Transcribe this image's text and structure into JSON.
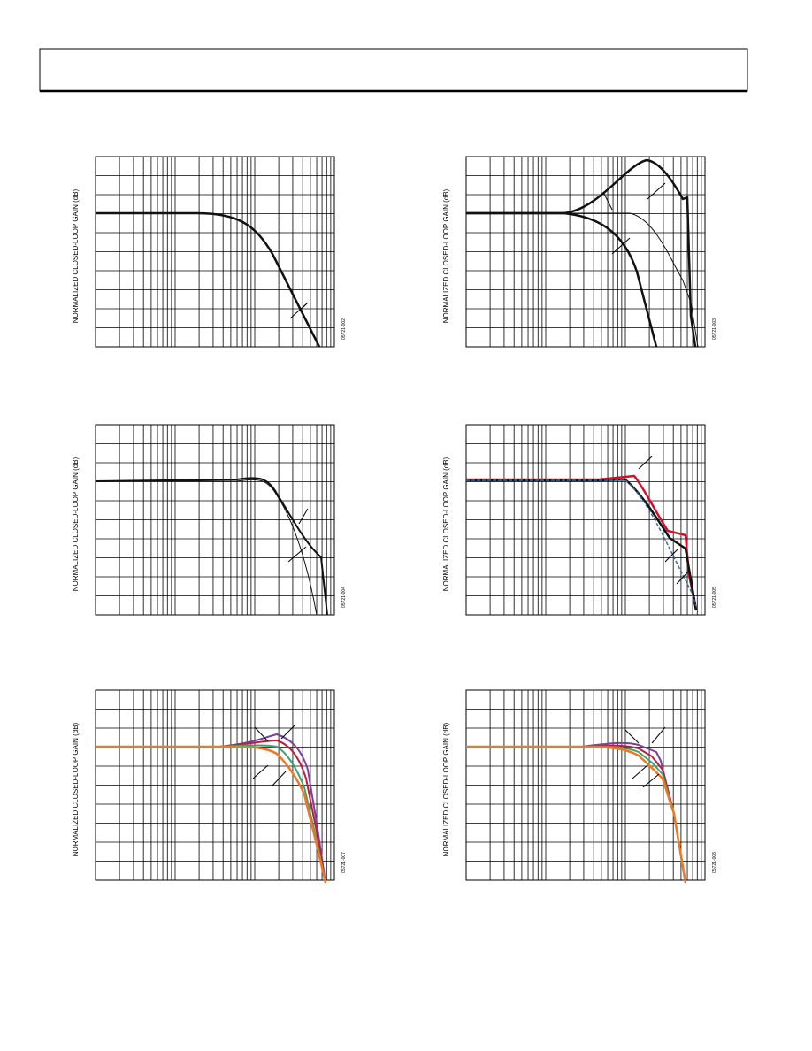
{
  "figures": [
    {
      "y_label": "NORMALIZED CLOSED-LOOP GAIN (dB)",
      "code": "05721-002"
    },
    {
      "y_label": "NORMALIZED CLOSED-LOOP GAIN (dB)",
      "code": "05721-003"
    },
    {
      "y_label": "NORMALIZED CLOSED-LOOP GAIN (dB)",
      "code": "05721-004"
    },
    {
      "y_label": "NORMALIZED CLOSED-LOOP GAIN (dB)",
      "code": "05721-005"
    },
    {
      "y_label": "NORMALIZED CLOSED-LOOP GAIN (dB)",
      "code": "05721-007"
    },
    {
      "y_label": "NORMALIZED CLOSED-LOOP GAIN (dB)",
      "code": "05721-008"
    }
  ]
}
